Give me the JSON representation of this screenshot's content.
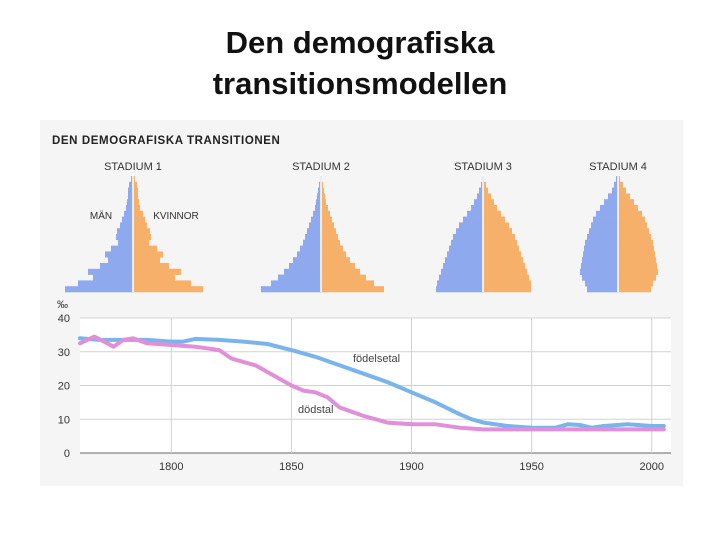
{
  "slide": {
    "title_line1": "Den demografiska",
    "title_line2": "transitionsmodellen"
  },
  "figure_header": "DEN DEMOGRAFISKA TRANSITIONEN",
  "colors": {
    "men": "#8fa9ee",
    "women": "#f7b06a",
    "birth_rate": "#7ab4ea",
    "death_rate": "#e08fd8",
    "figure_bg": "#f4f5f4"
  },
  "chart_data": [
    {
      "type": "bar",
      "subtype": "population-pyramids",
      "series_labels": {
        "men": "MÄN",
        "women": "KVINNOR"
      },
      "pyramids": [
        {
          "label": "STADIUM 1",
          "men": [
            2,
            4,
            5,
            5,
            6,
            7,
            9,
            11,
            13,
            16,
            17,
            15,
            22,
            28,
            25,
            33,
            45,
            40,
            55,
            68
          ],
          "women": [
            2,
            4,
            5,
            5,
            6,
            7,
            10,
            12,
            14,
            17,
            18,
            16,
            24,
            30,
            27,
            36,
            48,
            42,
            58,
            70
          ]
        },
        {
          "label": "STADIUM 2",
          "men": [
            1,
            2,
            3,
            4,
            5,
            6,
            8,
            10,
            12,
            14,
            16,
            18,
            21,
            24,
            28,
            32,
            37,
            43,
            50,
            60
          ],
          "women": [
            1,
            2,
            3,
            4,
            5,
            7,
            9,
            11,
            13,
            15,
            17,
            19,
            22,
            25,
            29,
            34,
            39,
            45,
            53,
            63
          ]
        },
        {
          "label": "STADIUM 3",
          "men": [
            1,
            2,
            4,
            6,
            9,
            12,
            16,
            20,
            24,
            27,
            30,
            32,
            34,
            36,
            38,
            40,
            42,
            44,
            46,
            47
          ],
          "women": [
            1,
            3,
            5,
            8,
            11,
            14,
            18,
            22,
            26,
            29,
            32,
            34,
            36,
            38,
            40,
            42,
            44,
            46,
            48,
            48
          ]
        },
        {
          "label": "STADIUM 4",
          "men": [
            2,
            4,
            6,
            10,
            14,
            18,
            22,
            25,
            27,
            29,
            31,
            33,
            34,
            35,
            36,
            37,
            38,
            36,
            33,
            31
          ],
          "women": [
            2,
            5,
            8,
            12,
            16,
            20,
            24,
            27,
            29,
            31,
            33,
            35,
            36,
            37,
            38,
            39,
            40,
            38,
            35,
            33
          ]
        }
      ]
    },
    {
      "type": "line",
      "ylabel": "‰",
      "xlim": [
        1762,
        2008
      ],
      "ylim": [
        0,
        40
      ],
      "xticks": [
        1800,
        1850,
        1900,
        1950,
        2000
      ],
      "yticks": [
        0,
        10,
        20,
        30,
        40
      ],
      "grid": true,
      "series": [
        {
          "name": "födelsetal",
          "x": [
            1762,
            1770,
            1780,
            1790,
            1800,
            1805,
            1810,
            1820,
            1830,
            1840,
            1850,
            1860,
            1870,
            1880,
            1890,
            1900,
            1910,
            1920,
            1925,
            1930,
            1940,
            1950,
            1960,
            1965,
            1970,
            1975,
            1980,
            1990,
            2000,
            2005
          ],
          "y": [
            34,
            33.5,
            33.5,
            33.5,
            33,
            33,
            33.8,
            33.5,
            33,
            32.3,
            30.5,
            28.5,
            26,
            23.5,
            21,
            18,
            15,
            11.5,
            10,
            9,
            8,
            7.5,
            7.5,
            8.5,
            8.3,
            7.5,
            8,
            8.5,
            8,
            8
          ]
        },
        {
          "name": "dödstal",
          "x": [
            1762,
            1768,
            1772,
            1776,
            1780,
            1784,
            1790,
            1800,
            1810,
            1820,
            1825,
            1830,
            1835,
            1840,
            1850,
            1855,
            1860,
            1865,
            1870,
            1880,
            1890,
            1900,
            1910,
            1920,
            1930,
            1950,
            1960,
            1980,
            1990,
            2000,
            2005
          ],
          "y": [
            32.5,
            34.5,
            33,
            31.5,
            33.5,
            34,
            32.5,
            32,
            31.5,
            30.5,
            28,
            27,
            26,
            24,
            20,
            18.5,
            18,
            16.5,
            13.5,
            11,
            9,
            8.5,
            8.5,
            7.5,
            7,
            7,
            7,
            7,
            7,
            7,
            7
          ]
        }
      ]
    }
  ]
}
